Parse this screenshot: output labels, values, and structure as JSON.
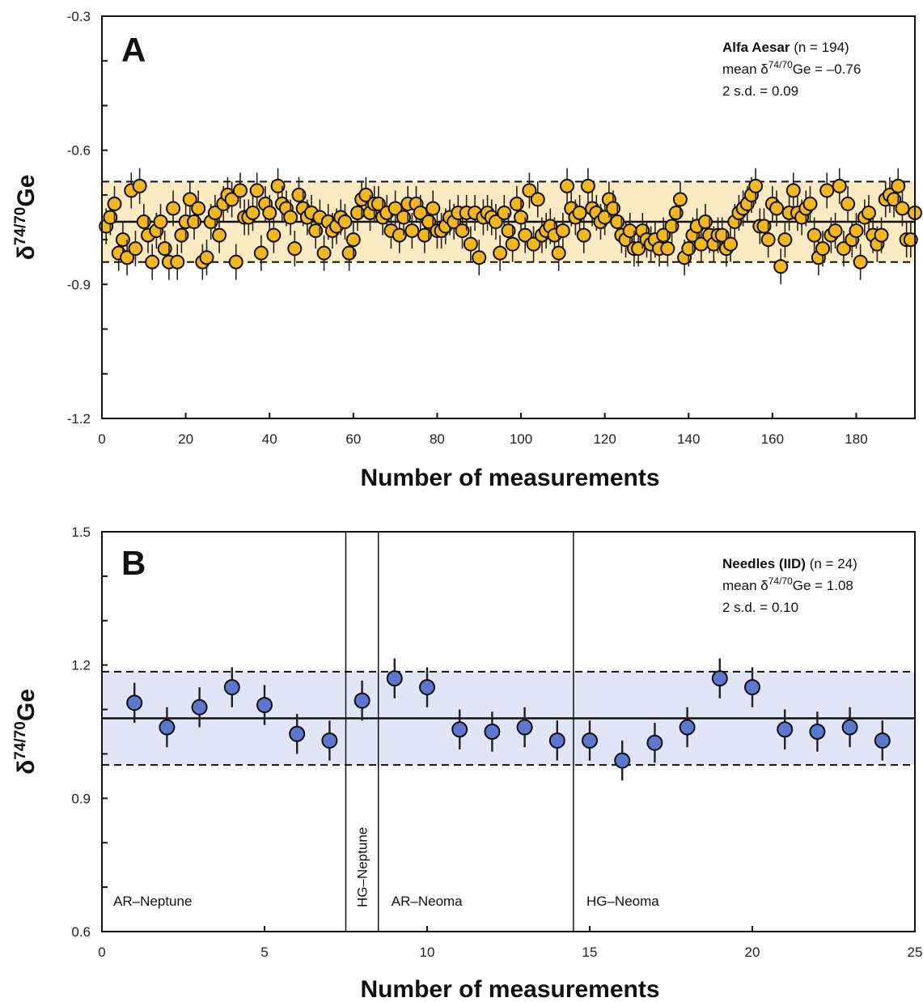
{
  "chart_data": [
    {
      "type": "scatter",
      "panel": "A",
      "xlabel": "Number of measurements",
      "ylabel_main": "δ",
      "ylabel_sup": "74/70",
      "ylabel_tail": "Ge",
      "xlim": [
        0,
        194
      ],
      "ylim": [
        -1.2,
        -0.3
      ],
      "xticks": [
        0,
        20,
        40,
        60,
        80,
        100,
        120,
        140,
        160,
        180
      ],
      "yticks": [
        -1.2,
        -0.9,
        -0.6,
        -0.3
      ],
      "ytick_labels": [
        "-1.2",
        "-0.9",
        "-0.6",
        "-0.3"
      ],
      "mean": -0.76,
      "band": [
        -0.85,
        -0.67
      ],
      "error": 0.04,
      "point_color": "#F2B61E",
      "band_color": "#FCEBC2",
      "annotation": {
        "name": "Alfa Aesar",
        "count": " (n = 194)",
        "mean_prefix": "mean δ",
        "mean_sup": "74/70",
        "mean_suffix": "Ge = –0.76",
        "sd": "2 s.d. = 0.09"
      },
      "x": [
        1,
        2,
        3,
        4,
        5,
        6,
        7,
        8,
        9,
        10,
        11,
        12,
        13,
        14,
        15,
        16,
        17,
        18,
        19,
        20,
        21,
        22,
        23,
        24,
        25,
        26,
        27,
        28,
        29,
        30,
        31,
        32,
        33,
        34,
        35,
        36,
        37,
        38,
        39,
        40,
        41,
        42,
        43,
        44,
        45,
        46,
        47,
        48,
        49,
        50,
        51,
        52,
        53,
        54,
        55,
        56,
        57,
        58,
        59,
        60,
        61,
        62,
        63,
        64,
        65,
        66,
        67,
        68,
        69,
        70,
        71,
        72,
        73,
        74,
        75,
        76,
        77,
        78,
        79,
        80,
        81,
        82,
        83,
        84,
        85,
        86,
        87,
        88,
        89,
        90,
        91,
        92,
        93,
        94,
        95,
        96,
        97,
        98,
        99,
        100,
        101,
        102,
        103,
        104,
        105,
        106,
        107,
        108,
        109,
        110,
        111,
        112,
        113,
        114,
        115,
        116,
        117,
        118,
        119,
        120,
        121,
        122,
        123,
        124,
        125,
        126,
        127,
        128,
        129,
        130,
        131,
        132,
        133,
        134,
        135,
        136,
        137,
        138,
        139,
        140,
        141,
        142,
        143,
        144,
        145,
        146,
        147,
        148,
        149,
        150,
        151,
        152,
        153,
        154,
        155,
        156,
        157,
        158,
        159,
        160,
        161,
        162,
        163,
        164,
        165,
        166,
        167,
        168,
        169,
        170,
        171,
        172,
        173,
        174,
        175,
        176,
        177,
        178,
        179,
        180,
        181,
        182,
        183,
        184,
        185,
        186,
        187,
        188,
        189,
        190,
        191,
        192,
        193,
        194
      ],
      "y": [
        -0.77,
        -0.75,
        -0.72,
        -0.83,
        -0.8,
        -0.84,
        -0.69,
        -0.82,
        -0.68,
        -0.76,
        -0.79,
        -0.85,
        -0.78,
        -0.76,
        -0.82,
        -0.85,
        -0.73,
        -0.85,
        -0.79,
        -0.76,
        -0.71,
        -0.76,
        -0.73,
        -0.85,
        -0.84,
        -0.76,
        -0.74,
        -0.79,
        -0.72,
        -0.7,
        -0.71,
        -0.85,
        -0.69,
        -0.75,
        -0.75,
        -0.74,
        -0.69,
        -0.83,
        -0.72,
        -0.74,
        -0.79,
        -0.68,
        -0.72,
        -0.73,
        -0.75,
        -0.82,
        -0.7,
        -0.73,
        -0.75,
        -0.74,
        -0.78,
        -0.75,
        -0.83,
        -0.76,
        -0.78,
        -0.77,
        -0.75,
        -0.76,
        -0.83,
        -0.8,
        -0.74,
        -0.71,
        -0.7,
        -0.74,
        -0.72,
        -0.72,
        -0.75,
        -0.74,
        -0.78,
        -0.73,
        -0.79,
        -0.75,
        -0.72,
        -0.78,
        -0.72,
        -0.74,
        -0.79,
        -0.76,
        -0.73,
        -0.78,
        -0.78,
        -0.77,
        -0.75,
        -0.76,
        -0.74,
        -0.78,
        -0.74,
        -0.81,
        -0.74,
        -0.84,
        -0.75,
        -0.74,
        -0.75,
        -0.76,
        -0.83,
        -0.74,
        -0.78,
        -0.81,
        -0.72,
        -0.75,
        -0.79,
        -0.69,
        -0.81,
        -0.71,
        -0.79,
        -0.78,
        -0.77,
        -0.79,
        -0.83,
        -0.78,
        -0.68,
        -0.73,
        -0.75,
        -0.74,
        -0.79,
        -0.68,
        -0.73,
        -0.74,
        -0.76,
        -0.75,
        -0.71,
        -0.73,
        -0.76,
        -0.79,
        -0.8,
        -0.78,
        -0.82,
        -0.82,
        -0.78,
        -0.8,
        -0.81,
        -0.8,
        -0.82,
        -0.79,
        -0.82,
        -0.77,
        -0.74,
        -0.71,
        -0.84,
        -0.82,
        -0.79,
        -0.77,
        -0.81,
        -0.76,
        -0.79,
        -0.81,
        -0.79,
        -0.79,
        -0.82,
        -0.81,
        -0.76,
        -0.74,
        -0.73,
        -0.72,
        -0.7,
        -0.68,
        -0.77,
        -0.77,
        -0.8,
        -0.72,
        -0.73,
        -0.86,
        -0.8,
        -0.74,
        -0.69,
        -0.74,
        -0.75,
        -0.73,
        -0.72,
        -0.79,
        -0.84,
        -0.82,
        -0.69,
        -0.79,
        -0.78,
        -0.68,
        -0.82,
        -0.72,
        -0.8,
        -0.78,
        -0.85,
        -0.75,
        -0.74,
        -0.79,
        -0.81,
        -0.79,
        -0.71,
        -0.7,
        -0.71,
        -0.68,
        -0.73,
        -0.8,
        -0.8,
        -0.74
      ]
    },
    {
      "type": "scatter",
      "panel": "B",
      "xlabel": "Number of measurements",
      "ylabel_main": "δ",
      "ylabel_sup": "74/70",
      "ylabel_tail": "Ge",
      "xlim": [
        0,
        25
      ],
      "ylim": [
        0.6,
        1.5
      ],
      "xticks": [
        0,
        5,
        10,
        15,
        20,
        25
      ],
      "yticks": [
        0.6,
        0.9,
        1.2,
        1.5
      ],
      "ytick_labels": [
        "0.6",
        "0.9",
        "1.2",
        "1.5"
      ],
      "mean": 1.08,
      "band": [
        0.975,
        1.185
      ],
      "error": 0.045,
      "point_color": "#5B77CF",
      "band_color": "#E1E6F6",
      "annotation": {
        "name": "Needles (IID)",
        "count": " (n = 24)",
        "mean_prefix": "mean δ",
        "mean_sup": "74/70",
        "mean_suffix": "Ge = 1.08",
        "sd": "2 s.d. = 0.10"
      },
      "dividers": [
        7.5,
        8.5,
        14.5
      ],
      "regions": [
        {
          "label": "AR–Neptune",
          "x": 0.35,
          "vertical": false
        },
        {
          "label": "HG–Neptune",
          "x": 8.0,
          "vertical": true
        },
        {
          "label": "AR–Neoma",
          "x": 8.9,
          "vertical": false
        },
        {
          "label": "HG–Neoma",
          "x": 14.9,
          "vertical": false
        }
      ],
      "x": [
        1,
        2,
        3,
        4,
        5,
        6,
        7,
        8,
        9,
        10,
        11,
        12,
        13,
        14,
        15,
        16,
        17,
        18,
        19,
        20,
        21,
        22,
        23,
        24
      ],
      "y": [
        1.115,
        1.06,
        1.105,
        1.15,
        1.11,
        1.045,
        1.03,
        1.12,
        1.17,
        1.15,
        1.055,
        1.05,
        1.06,
        1.03,
        1.03,
        0.985,
        1.025,
        1.06,
        1.17,
        1.15,
        1.055,
        1.05,
        1.06,
        1.03
      ]
    }
  ]
}
